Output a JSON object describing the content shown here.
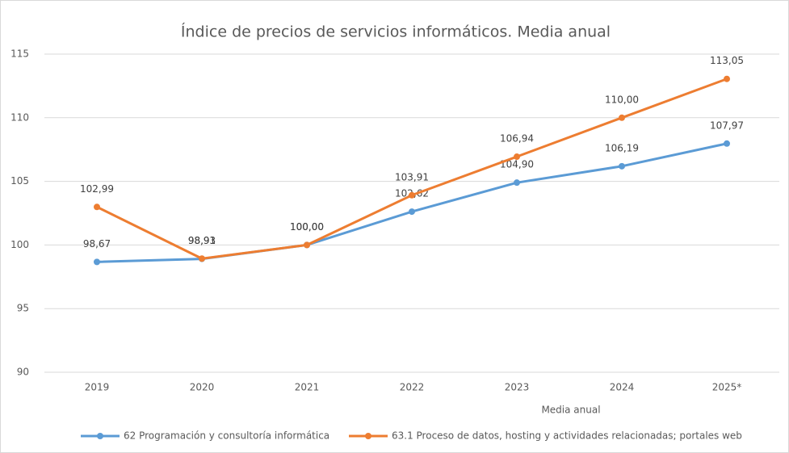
{
  "chart_data": {
    "type": "line",
    "title": "Índice de precios de servicios informáticos. Media anual",
    "x_label": "Media anual",
    "categories": [
      "2019",
      "2020",
      "2021",
      "2022",
      "2023",
      "2024",
      "2025*"
    ],
    "series": [
      {
        "name": "62 Programación y consultoría informática",
        "color": "#5b9bd5",
        "values": [
          98.67,
          98.91,
          100.0,
          102.62,
          104.9,
          106.19,
          107.97
        ],
        "value_labels": [
          "98,67",
          "98,91",
          "100,00",
          "102,62",
          "104,90",
          "106,19",
          "107,97"
        ]
      },
      {
        "name": "63.1 Proceso de datos, hosting y actividades relacionadas; portales web",
        "color": "#ed7d31",
        "values": [
          102.99,
          98.93,
          100.0,
          103.91,
          106.94,
          110.0,
          113.05
        ],
        "value_labels": [
          "102,99",
          "98,93",
          "100,00",
          "103,91",
          "106,94",
          "110,00",
          "113,05"
        ]
      }
    ],
    "ylim": [
      90,
      115
    ],
    "yticks": [
      90,
      95,
      100,
      105,
      110,
      115
    ],
    "grid": true,
    "legend": "bottom"
  }
}
